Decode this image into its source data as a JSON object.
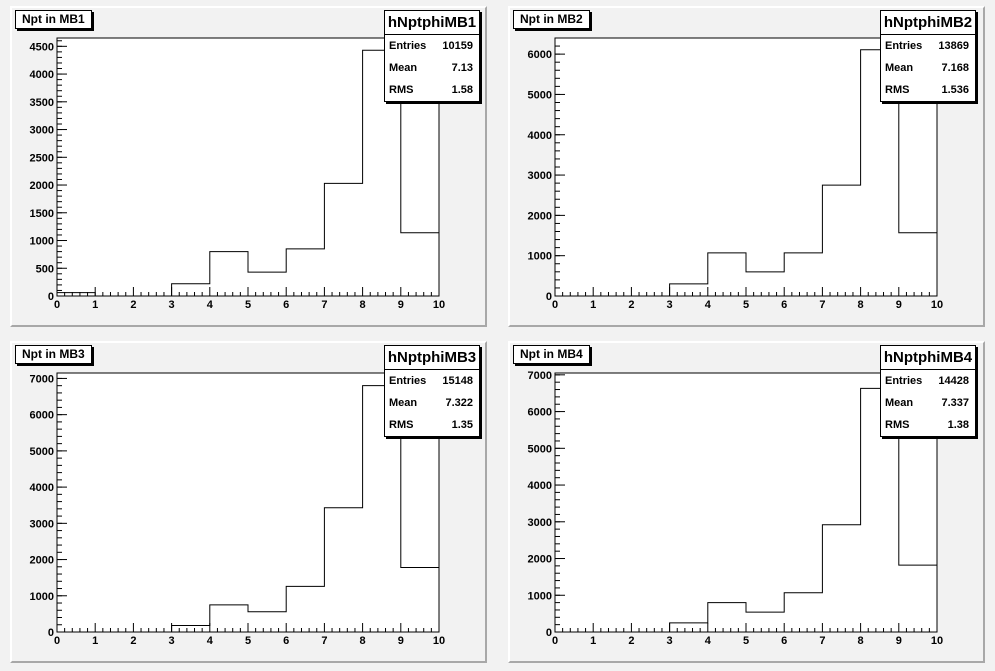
{
  "chart_data": [
    {
      "type": "histogram",
      "title": "Npt in MB1",
      "x": [
        0,
        1,
        2,
        3,
        4,
        5,
        6,
        7,
        8,
        9
      ],
      "bin_edges": [
        0,
        1,
        2,
        3,
        4,
        5,
        6,
        7,
        8,
        9,
        10
      ],
      "values": [
        60,
        0,
        0,
        220,
        800,
        430,
        850,
        2030,
        4430,
        1140
      ],
      "xlim": [
        0,
        10
      ],
      "ylim": [
        0,
        4650
      ],
      "yticks_major": [
        0,
        500,
        1000,
        1500,
        2000,
        2500,
        3000,
        3500,
        4000,
        4500
      ],
      "y_minor_step": 100,
      "stats": {
        "name": "hNptphiMB1",
        "entries_label": "Entries",
        "entries": "10159",
        "mean_label": "Mean",
        "mean": "7.13",
        "rms_label": "RMS",
        "rms": "1.58"
      }
    },
    {
      "type": "histogram",
      "title": "Npt in MB2",
      "x": [
        0,
        1,
        2,
        3,
        4,
        5,
        6,
        7,
        8,
        9
      ],
      "bin_edges": [
        0,
        1,
        2,
        3,
        4,
        5,
        6,
        7,
        8,
        9,
        10
      ],
      "values": [
        0,
        0,
        0,
        300,
        1070,
        600,
        1070,
        2750,
        6110,
        1570
      ],
      "xlim": [
        0,
        10
      ],
      "ylim": [
        0,
        6400
      ],
      "yticks_major": [
        0,
        1000,
        2000,
        3000,
        4000,
        5000,
        6000
      ],
      "y_minor_step": 200,
      "stats": {
        "name": "hNptphiMB2",
        "entries_label": "Entries",
        "entries": "13869",
        "mean_label": "Mean",
        "mean": "7.168",
        "rms_label": "RMS",
        "rms": "1.536"
      }
    },
    {
      "type": "histogram",
      "title": "Npt in MB3",
      "x": [
        0,
        1,
        2,
        3,
        4,
        5,
        6,
        7,
        8,
        9
      ],
      "bin_edges": [
        0,
        1,
        2,
        3,
        4,
        5,
        6,
        7,
        8,
        9,
        10
      ],
      "values": [
        0,
        0,
        0,
        180,
        750,
        560,
        1260,
        3430,
        6800,
        1780
      ],
      "xlim": [
        0,
        10
      ],
      "ylim": [
        0,
        7150
      ],
      "yticks_major": [
        0,
        1000,
        2000,
        3000,
        4000,
        5000,
        6000,
        7000
      ],
      "y_minor_step": 200,
      "stats": {
        "name": "hNptphiMB3",
        "entries_label": "Entries",
        "entries": "15148",
        "mean_label": "Mean",
        "mean": "7.322",
        "rms_label": "RMS",
        "rms": "1.35"
      }
    },
    {
      "type": "histogram",
      "title": "Npt in MB4",
      "x": [
        0,
        1,
        2,
        3,
        4,
        5,
        6,
        7,
        8,
        9
      ],
      "bin_edges": [
        0,
        1,
        2,
        3,
        4,
        5,
        6,
        7,
        8,
        9,
        10
      ],
      "values": [
        0,
        0,
        0,
        250,
        800,
        540,
        1070,
        2920,
        6630,
        1820
      ],
      "xlim": [
        0,
        10
      ],
      "ylim": [
        0,
        7050
      ],
      "yticks_major": [
        0,
        1000,
        2000,
        3000,
        4000,
        5000,
        6000,
        7000
      ],
      "y_minor_step": 200,
      "stats": {
        "name": "hNptphiMB4",
        "entries_label": "Entries",
        "entries": "14428",
        "mean_label": "Mean",
        "mean": "7.337",
        "rms_label": "RMS",
        "rms": "1.38"
      }
    }
  ]
}
